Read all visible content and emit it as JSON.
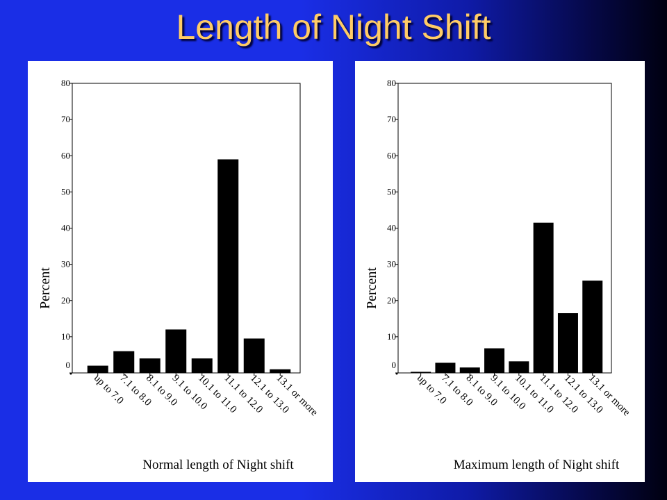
{
  "slide": {
    "title": "Length of Night Shift"
  },
  "chart_data": [
    {
      "type": "bar",
      "categories": [
        "up to 7.0",
        "7.1 to 8.0",
        "8.1 to 9.0",
        "9.1 to 10.0",
        "10.1 to 11.0",
        "11.1 to 12.0",
        "12.1 to 13.0",
        "13.1 or more"
      ],
      "values": [
        2,
        6,
        4,
        12,
        4,
        59,
        9.5,
        1
      ],
      "ylabel": "Percent",
      "xlabel": "Normal length of Night shift",
      "ylim": [
        0,
        80
      ],
      "yticks": [
        0,
        10,
        20,
        30,
        40,
        50,
        60,
        70,
        80
      ],
      "grid": false,
      "bar_color": "#000000"
    },
    {
      "type": "bar",
      "categories": [
        "up to 7.0",
        "7.1 to 8.0",
        "8.1 to 9.0",
        "9.1 to 10.0",
        "10.1 to 11.0",
        "11.1 to 12.0",
        "12.1 to 13.0",
        "13.1 or more"
      ],
      "values": [
        0.3,
        2.8,
        1.5,
        6.8,
        3.2,
        41.5,
        16.5,
        25.5
      ],
      "ylabel": "Percent",
      "xlabel": "Maximum length of Night shift",
      "ylim": [
        0,
        80
      ],
      "yticks": [
        0,
        10,
        20,
        30,
        40,
        50,
        60,
        70,
        80
      ],
      "grid": false,
      "bar_color": "#000000"
    }
  ]
}
